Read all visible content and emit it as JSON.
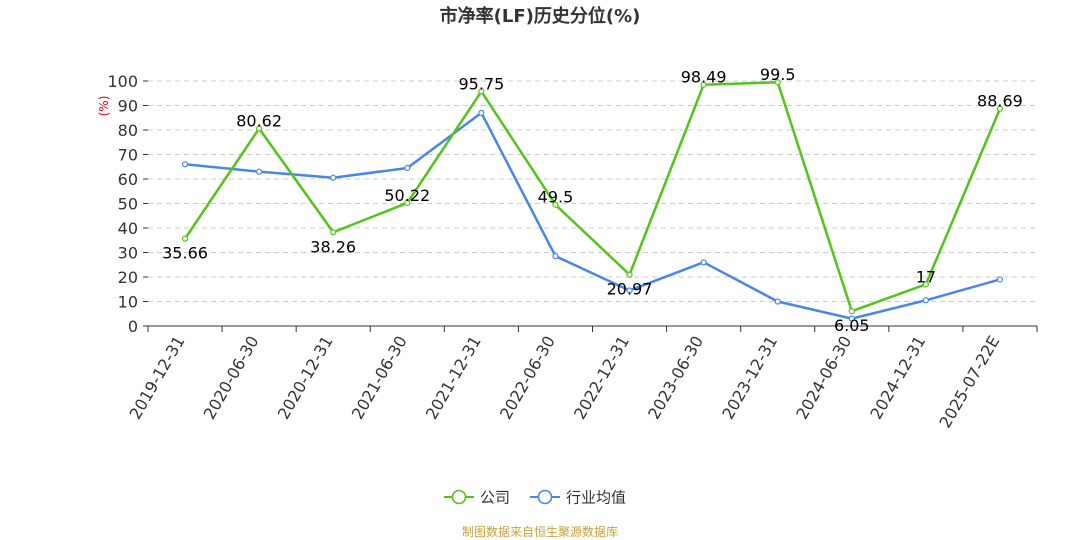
{
  "chart_data": {
    "type": "line",
    "title": "市净率(LF)历史分位(%)",
    "ylabel": "(%)",
    "xlabel": "",
    "categories": [
      "2019-12-31",
      "2020-06-30",
      "2020-12-31",
      "2021-06-30",
      "2021-12-31",
      "2022-06-30",
      "2022-12-31",
      "2023-06-30",
      "2023-12-31",
      "2024-06-30",
      "2024-12-31",
      "2025-07-22E"
    ],
    "ylim": [
      0,
      100
    ],
    "yticks": [
      0,
      10,
      20,
      30,
      40,
      50,
      60,
      70,
      80,
      90,
      100
    ],
    "grid": "horizontal dashed",
    "legend_position": "bottom-center",
    "series": [
      {
        "name": "公司",
        "color": "#52c41a",
        "values": [
          35.66,
          80.62,
          38.26,
          50.22,
          95.75,
          49.5,
          20.97,
          98.49,
          99.5,
          6.05,
          17,
          88.69
        ],
        "labels": [
          "35.66",
          "80.62",
          "38.26",
          "50.22",
          "95.75",
          "49.5",
          "20.97",
          "98.49",
          "99.5",
          "6.05",
          "17",
          "88.69"
        ]
      },
      {
        "name": "行业均值",
        "color": "#4a86e8",
        "values": [
          66,
          63,
          60.5,
          64.5,
          87,
          28.5,
          14.5,
          26,
          10,
          3,
          10.5,
          19
        ]
      }
    ]
  },
  "source": "制图数据来自恒生聚源数据库"
}
